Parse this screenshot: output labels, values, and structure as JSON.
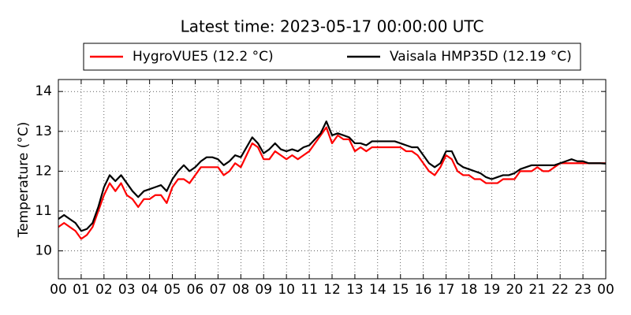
{
  "chart_data": {
    "type": "line",
    "title": "Latest time: 2023-05-17 00:00:00 UTC",
    "ylabel": "Temperature (°C)",
    "x": [
      0,
      0.25,
      0.5,
      0.75,
      1,
      1.25,
      1.5,
      1.75,
      2,
      2.25,
      2.5,
      2.75,
      3,
      3.25,
      3.5,
      3.75,
      4,
      4.25,
      4.5,
      4.75,
      5,
      5.25,
      5.5,
      5.75,
      6,
      6.25,
      6.5,
      6.75,
      7,
      7.25,
      7.5,
      7.75,
      8,
      8.25,
      8.5,
      8.75,
      9,
      9.25,
      9.5,
      9.75,
      10,
      10.25,
      10.5,
      10.75,
      11,
      11.25,
      11.5,
      11.75,
      12,
      12.25,
      12.5,
      12.75,
      13,
      13.25,
      13.5,
      13.75,
      14,
      14.25,
      14.5,
      14.75,
      15,
      15.25,
      15.5,
      15.75,
      16,
      16.25,
      16.5,
      16.75,
      17,
      17.25,
      17.5,
      17.75,
      18,
      18.25,
      18.5,
      18.75,
      19,
      19.25,
      19.5,
      19.75,
      20,
      20.25,
      20.5,
      20.75,
      21,
      21.25,
      21.5,
      21.75,
      22,
      22.25,
      22.5,
      22.75,
      23,
      23.25,
      23.5,
      23.75,
      24
    ],
    "series": [
      {
        "name": "HygroVUE5 (12.2 °C)",
        "color": "#ff0000",
        "values": [
          10.6,
          10.7,
          10.6,
          10.5,
          10.3,
          10.4,
          10.6,
          11.0,
          11.4,
          11.7,
          11.5,
          11.7,
          11.4,
          11.3,
          11.1,
          11.3,
          11.3,
          11.4,
          11.4,
          11.2,
          11.6,
          11.8,
          11.8,
          11.7,
          11.9,
          12.1,
          12.1,
          12.1,
          12.1,
          11.9,
          12.0,
          12.2,
          12.1,
          12.4,
          12.7,
          12.6,
          12.3,
          12.3,
          12.5,
          12.4,
          12.3,
          12.4,
          12.3,
          12.4,
          12.5,
          12.7,
          12.9,
          13.1,
          12.7,
          12.9,
          12.8,
          12.8,
          12.5,
          12.6,
          12.5,
          12.6,
          12.6,
          12.6,
          12.6,
          12.6,
          12.6,
          12.5,
          12.5,
          12.4,
          12.2,
          12.0,
          11.9,
          12.1,
          12.4,
          12.3,
          12.0,
          11.9,
          11.9,
          11.8,
          11.8,
          11.7,
          11.7,
          11.7,
          11.8,
          11.8,
          11.8,
          12.0,
          12.0,
          12.0,
          12.1,
          12.0,
          12.0,
          12.1,
          12.2,
          12.2,
          12.2,
          12.2,
          12.2,
          12.2,
          12.2,
          12.2,
          12.2
        ]
      },
      {
        "name": "Vaisala HMP35D (12.19 °C)",
        "color": "#000000",
        "values": [
          10.8,
          10.9,
          10.8,
          10.7,
          10.5,
          10.55,
          10.7,
          11.1,
          11.6,
          11.9,
          11.75,
          11.9,
          11.7,
          11.5,
          11.35,
          11.5,
          11.55,
          11.6,
          11.65,
          11.5,
          11.8,
          12.0,
          12.15,
          12.0,
          12.1,
          12.25,
          12.35,
          12.35,
          12.3,
          12.15,
          12.25,
          12.4,
          12.35,
          12.6,
          12.85,
          12.7,
          12.45,
          12.55,
          12.7,
          12.55,
          12.5,
          12.55,
          12.5,
          12.6,
          12.65,
          12.8,
          12.95,
          13.25,
          12.9,
          12.95,
          12.9,
          12.85,
          12.7,
          12.7,
          12.65,
          12.75,
          12.75,
          12.75,
          12.75,
          12.75,
          12.7,
          12.65,
          12.6,
          12.6,
          12.4,
          12.2,
          12.1,
          12.2,
          12.5,
          12.5,
          12.2,
          12.1,
          12.05,
          12.0,
          11.95,
          11.85,
          11.8,
          11.85,
          11.9,
          11.9,
          11.95,
          12.05,
          12.1,
          12.15,
          12.15,
          12.15,
          12.15,
          12.15,
          12.2,
          12.25,
          12.3,
          12.25,
          12.25,
          12.2,
          12.2,
          12.2,
          12.19
        ]
      }
    ],
    "xlim": [
      0,
      24
    ],
    "xticks": [
      {
        "value": 0,
        "label": "00"
      },
      {
        "value": 1,
        "label": "01"
      },
      {
        "value": 2,
        "label": "02"
      },
      {
        "value": 3,
        "label": "03"
      },
      {
        "value": 4,
        "label": "04"
      },
      {
        "value": 5,
        "label": "05"
      },
      {
        "value": 6,
        "label": "06"
      },
      {
        "value": 7,
        "label": "07"
      },
      {
        "value": 8,
        "label": "08"
      },
      {
        "value": 9,
        "label": "09"
      },
      {
        "value": 10,
        "label": "10"
      },
      {
        "value": 11,
        "label": "11"
      },
      {
        "value": 12,
        "label": "12"
      },
      {
        "value": 13,
        "label": "13"
      },
      {
        "value": 14,
        "label": "14"
      },
      {
        "value": 15,
        "label": "15"
      },
      {
        "value": 16,
        "label": "16"
      },
      {
        "value": 17,
        "label": "17"
      },
      {
        "value": 18,
        "label": "18"
      },
      {
        "value": 19,
        "label": "19"
      },
      {
        "value": 20,
        "label": "20"
      },
      {
        "value": 21,
        "label": "21"
      },
      {
        "value": 22,
        "label": "22"
      },
      {
        "value": 23,
        "label": "23"
      },
      {
        "value": 24,
        "label": "00"
      }
    ],
    "ylim": [
      9.3,
      14.3
    ],
    "yticks": [
      10,
      11,
      12,
      13,
      14
    ],
    "grid": true,
    "legend": "top"
  }
}
